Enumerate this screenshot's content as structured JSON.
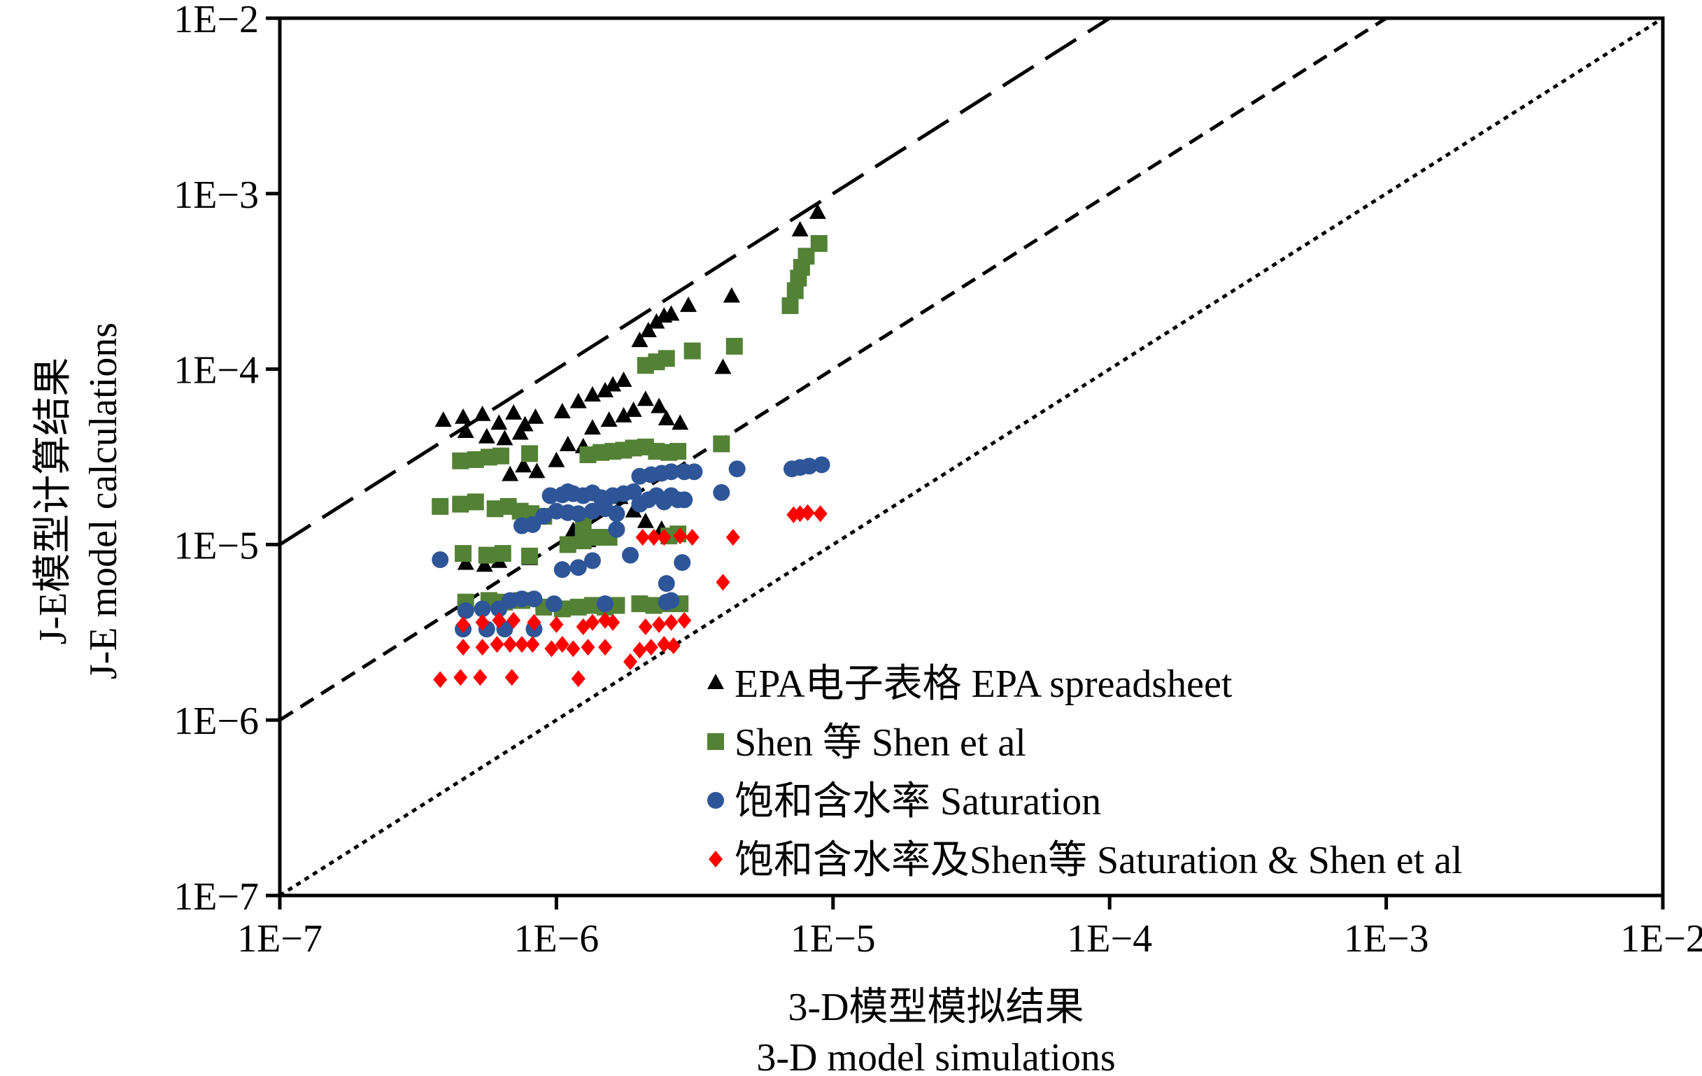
{
  "chart_data": {
    "type": "scatter",
    "x_scale": "log",
    "y_scale": "log",
    "xlim": [
      1e-07,
      0.01
    ],
    "ylim": [
      1e-07,
      0.01
    ],
    "grid": false,
    "legend_position": "bottom-right",
    "xlabel_lines": [
      "3-D模型模拟结果",
      "3-D model simulations"
    ],
    "ylabel_lines": [
      "J-E模型计算结果",
      "J-E model calculations"
    ],
    "x_tick_labels": [
      "1E−7",
      "1E−6",
      "1E−5",
      "1E−4",
      "1E−3",
      "1E−2"
    ],
    "y_tick_labels": [
      "1E−7",
      "1E−6",
      "1E−5",
      "1E−4",
      "1E−3",
      "1E−2"
    ],
    "tick_values": [
      1e-07,
      1e-06,
      1e-05,
      0.0001,
      0.001,
      0.01
    ],
    "reference_lines": [
      {
        "style": "dotted",
        "factor": 1
      },
      {
        "style": "short-dash",
        "factor": 10
      },
      {
        "style": "long-dash",
        "factor": 100
      }
    ],
    "series": [
      {
        "name": "EPA电子表格 EPA spreadsheet",
        "marker": "triangle",
        "color": "#000000",
        "points": [
          [
            3.9e-07,
            5.1e-05
          ],
          [
            4.6e-07,
            5.3e-05
          ],
          [
            5.4e-07,
            5.5e-05
          ],
          [
            6.2e-07,
            4.9e-05
          ],
          [
            7e-07,
            5.6e-05
          ],
          [
            7.7e-07,
            4.8e-05
          ],
          [
            8.4e-07,
            5.3e-05
          ],
          [
            4.7e-07,
            4.4e-05
          ],
          [
            5.6e-07,
            4.1e-05
          ],
          [
            6.5e-07,
            4e-05
          ],
          [
            7.4e-07,
            4.3e-05
          ],
          [
            6.8e-07,
            2.5e-05
          ],
          [
            7.6e-07,
            2.8e-05
          ],
          [
            8.5e-07,
            2.6e-05
          ],
          [
            1e-06,
            3e-05
          ],
          [
            1.1e-06,
            3.7e-05
          ],
          [
            1.25e-06,
            3.6e-05
          ],
          [
            1.4e-06,
            3.3e-05
          ],
          [
            1.05e-06,
            5.7e-05
          ],
          [
            1.2e-06,
            6.5e-05
          ],
          [
            1.35e-06,
            7.1e-05
          ],
          [
            1.5e-06,
            7.5e-05
          ],
          [
            1.6e-06,
            8.1e-05
          ],
          [
            1.75e-06,
            8.6e-05
          ],
          [
            1.35e-06,
            4.6e-05
          ],
          [
            1.55e-06,
            5.1e-05
          ],
          [
            1.75e-06,
            5.4e-05
          ],
          [
            1.9e-06,
            5.8e-05
          ],
          [
            2.1e-06,
            6.7e-05
          ],
          [
            2.35e-06,
            6.1e-05
          ],
          [
            2e-06,
            0.000145
          ],
          [
            2.15e-06,
            0.000165
          ],
          [
            2.3e-06,
            0.000185
          ],
          [
            2.45e-06,
            0.0002
          ],
          [
            2.6e-06,
            0.000205
          ],
          [
            3e-06,
            0.00023
          ],
          [
            2.5e-06,
            5.2e-05
          ],
          [
            2.8e-06,
            4.9e-05
          ],
          [
            4.3e-06,
            0.00026
          ],
          [
            4e-06,
            0.000102
          ],
          [
            1.7e-06,
            1.85e-05
          ],
          [
            1.9e-06,
            1.55e-05
          ],
          [
            2.1e-06,
            1.35e-05
          ],
          [
            1.3e-06,
            1.05e-05
          ],
          [
            2.4e-06,
            1.22e-05
          ],
          [
            7.6e-06,
            0.00062
          ],
          [
            8.8e-06,
            0.00078
          ],
          [
            4.7e-07,
            7.8e-06
          ],
          [
            5.5e-07,
            7.6e-06
          ],
          [
            6.2e-07,
            8e-06
          ],
          [
            8e-07,
            8.3e-06
          ],
          [
            1.15e-06,
            1.2e-05
          ]
        ]
      },
      {
        "name": "Shen 等 Shen et al",
        "marker": "square",
        "color": "#538135",
        "points": [
          [
            3.8e-07,
            1.65e-05
          ],
          [
            4.5e-07,
            1.7e-05
          ],
          [
            5.1e-07,
            1.75e-05
          ],
          [
            4.5e-07,
            3e-05
          ],
          [
            5.1e-07,
            3.05e-05
          ],
          [
            5.7e-07,
            3.15e-05
          ],
          [
            6.3e-07,
            3.2e-05
          ],
          [
            8e-07,
            3.3e-05
          ],
          [
            6e-07,
            1.6e-05
          ],
          [
            6.7e-07,
            1.65e-05
          ],
          [
            7.4e-07,
            1.55e-05
          ],
          [
            8.1e-07,
            1.5e-05
          ],
          [
            9e-07,
            1.45e-05
          ],
          [
            4.6e-07,
            8.9e-06
          ],
          [
            5.6e-07,
            8.7e-06
          ],
          [
            6.4e-07,
            8.9e-06
          ],
          [
            8e-07,
            8.6e-06
          ],
          [
            4.7e-07,
            4.7e-06
          ],
          [
            5.7e-07,
            4.8e-06
          ],
          [
            6.5e-07,
            4.7e-06
          ],
          [
            7.5e-07,
            4.8e-06
          ],
          [
            9e-07,
            4.4e-06
          ],
          [
            1.05e-06,
            4.3e-06
          ],
          [
            1.2e-06,
            4.4e-06
          ],
          [
            1.35e-06,
            4.5e-06
          ],
          [
            1.5e-06,
            4.4e-06
          ],
          [
            1.65e-06,
            4.5e-06
          ],
          [
            2e-06,
            4.6e-06
          ],
          [
            2.25e-06,
            4.5e-06
          ],
          [
            2.55e-06,
            4.6e-06
          ],
          [
            2.8e-06,
            4.6e-06
          ],
          [
            1.1e-06,
            1e-05
          ],
          [
            1.25e-06,
            1.05e-05
          ],
          [
            1.4e-06,
            1.1e-05
          ],
          [
            1.55e-06,
            1.1e-05
          ],
          [
            1.25e-06,
            1.3e-05
          ],
          [
            1.3e-06,
            3.25e-05
          ],
          [
            1.45e-06,
            3.35e-05
          ],
          [
            1.6e-06,
            3.4e-05
          ],
          [
            1.75e-06,
            3.45e-05
          ],
          [
            1.9e-06,
            3.55e-05
          ],
          [
            2.1e-06,
            3.6e-05
          ],
          [
            2.3e-06,
            3.4e-05
          ],
          [
            2.55e-06,
            3.35e-05
          ],
          [
            2.75e-06,
            3.4e-05
          ],
          [
            2.55e-06,
            1.12e-05
          ],
          [
            2.75e-06,
            1.15e-05
          ],
          [
            2.1e-06,
            0.000105
          ],
          [
            2.3e-06,
            0.00011
          ],
          [
            2.5e-06,
            0.000115
          ],
          [
            3.1e-06,
            0.000127
          ],
          [
            4.4e-06,
            0.000135
          ],
          [
            3.95e-06,
            3.75e-05
          ],
          [
            7e-06,
            0.00023
          ],
          [
            7.3e-06,
            0.00028
          ],
          [
            7.5e-06,
            0.00033
          ],
          [
            7.7e-06,
            0.00038
          ],
          [
            8e-06,
            0.00044
          ],
          [
            8.9e-06,
            0.00052
          ]
        ]
      },
      {
        "name": "饱和含水率 Saturation",
        "marker": "circle",
        "color": "#2E5597",
        "points": [
          [
            3.8e-07,
            8.2e-06
          ],
          [
            4.7e-07,
            4.2e-06
          ],
          [
            5.4e-07,
            4.3e-06
          ],
          [
            6.2e-07,
            4.3e-06
          ],
          [
            6.8e-07,
            4.8e-06
          ],
          [
            7.5e-07,
            4.9e-06
          ],
          [
            8.3e-07,
            4.9e-06
          ],
          [
            4.6e-07,
            3.3e-06
          ],
          [
            5.6e-07,
            3.3e-06
          ],
          [
            6.5e-07,
            3.3e-06
          ],
          [
            8.3e-07,
            3.3e-06
          ],
          [
            9.8e-07,
            4.6e-06
          ],
          [
            1.05e-06,
            7.2e-06
          ],
          [
            1.2e-06,
            7.4e-06
          ],
          [
            1.35e-06,
            8.1e-06
          ],
          [
            1.5e-06,
            4.6e-06
          ],
          [
            2.5e-06,
            4.7e-06
          ],
          [
            2.6e-06,
            4.8e-06
          ],
          [
            7.5e-07,
            1.28e-05
          ],
          [
            8.2e-07,
            1.3e-05
          ],
          [
            9e-07,
            1.45e-05
          ],
          [
            1e-06,
            1.55e-05
          ],
          [
            1.1e-06,
            1.52e-05
          ],
          [
            1.2e-06,
            1.5e-05
          ],
          [
            1.35e-06,
            1.55e-05
          ],
          [
            1.5e-06,
            1.6e-05
          ],
          [
            1.65e-06,
            1.5e-05
          ],
          [
            9.5e-07,
            1.9e-05
          ],
          [
            1.05e-06,
            1.92e-05
          ],
          [
            1.15e-06,
            1.95e-05
          ],
          [
            1.25e-06,
            1.9e-05
          ],
          [
            1.35e-06,
            1.97e-05
          ],
          [
            1.45e-06,
            1.85e-05
          ],
          [
            1.6e-06,
            1.9e-05
          ],
          [
            1.75e-06,
            1.95e-05
          ],
          [
            1.9e-06,
            2e-05
          ],
          [
            2e-06,
            1.7e-05
          ],
          [
            2.15e-06,
            1.8e-05
          ],
          [
            2.3e-06,
            1.9e-05
          ],
          [
            2.45e-06,
            1.75e-05
          ],
          [
            2.6e-06,
            1.9e-05
          ],
          [
            2.75e-06,
            1.8e-05
          ],
          [
            2.9e-06,
            1.8e-05
          ],
          [
            2e-06,
            2.45e-05
          ],
          [
            2.2e-06,
            2.5e-05
          ],
          [
            2.4e-06,
            2.55e-05
          ],
          [
            2.6e-06,
            2.6e-05
          ],
          [
            2.9e-06,
            2.6e-05
          ],
          [
            3.15e-06,
            2.6e-05
          ],
          [
            1.1e-06,
            2e-05
          ],
          [
            1.65e-06,
            1.22e-05
          ],
          [
            1.85e-06,
            8.7e-06
          ],
          [
            2.85e-06,
            7.9e-06
          ],
          [
            2.5e-06,
            6e-06
          ],
          [
            3.95e-06,
            1.98e-05
          ],
          [
            4.5e-06,
            2.7e-05
          ],
          [
            7.1e-06,
            2.7e-05
          ],
          [
            7.6e-06,
            2.75e-05
          ],
          [
            8.2e-06,
            2.8e-05
          ],
          [
            9.1e-06,
            2.85e-05
          ]
        ]
      },
      {
        "name": "饱和含水率及Shen等 Saturation & Shen et al",
        "marker": "diamond",
        "color": "#FF0000",
        "points": [
          [
            3.8e-07,
            1.7e-06
          ],
          [
            4.5e-07,
            1.75e-06
          ],
          [
            5.3e-07,
            1.75e-06
          ],
          [
            6.9e-07,
            1.75e-06
          ],
          [
            1.2e-06,
            1.72e-06
          ],
          [
            4.6e-07,
            2.6e-06
          ],
          [
            5.4e-07,
            2.6e-06
          ],
          [
            6.1e-07,
            2.7e-06
          ],
          [
            6.8e-07,
            2.7e-06
          ],
          [
            7.5e-07,
            2.7e-06
          ],
          [
            8.2e-07,
            2.7e-06
          ],
          [
            9.6e-07,
            2.55e-06
          ],
          [
            1.05e-06,
            2.7e-06
          ],
          [
            1.15e-06,
            2.55e-06
          ],
          [
            1.3e-06,
            2.6e-06
          ],
          [
            1.5e-06,
            2.6e-06
          ],
          [
            4.6e-07,
            3.5e-06
          ],
          [
            5.4e-07,
            3.6e-06
          ],
          [
            6.2e-07,
            3.7e-06
          ],
          [
            7e-07,
            3.7e-06
          ],
          [
            8.3e-07,
            3.6e-06
          ],
          [
            1e-06,
            3.5e-06
          ],
          [
            1.25e-06,
            3.4e-06
          ],
          [
            1.35e-06,
            3.6e-06
          ],
          [
            1.5e-06,
            3.7e-06
          ],
          [
            1.6e-06,
            3.6e-06
          ],
          [
            1.85e-06,
            2.15e-06
          ],
          [
            2e-06,
            2.5e-06
          ],
          [
            2.2e-06,
            2.6e-06
          ],
          [
            2.45e-06,
            2.7e-06
          ],
          [
            2.65e-06,
            2.65e-06
          ],
          [
            2.1e-06,
            3.4e-06
          ],
          [
            2.35e-06,
            3.5e-06
          ],
          [
            2.6e-06,
            3.6e-06
          ],
          [
            2.9e-06,
            3.7e-06
          ],
          [
            2.05e-06,
            1.1e-05
          ],
          [
            2.25e-06,
            1.1e-05
          ],
          [
            2.45e-06,
            1.1e-05
          ],
          [
            2.8e-06,
            1.12e-05
          ],
          [
            3.1e-06,
            1.1e-05
          ],
          [
            4e-06,
            6.1e-06
          ],
          [
            4.35e-06,
            1.1e-05
          ],
          [
            7.2e-06,
            1.48e-05
          ],
          [
            7.6e-06,
            1.5e-05
          ],
          [
            8.1e-06,
            1.52e-05
          ],
          [
            9e-06,
            1.5e-05
          ]
        ]
      }
    ]
  }
}
